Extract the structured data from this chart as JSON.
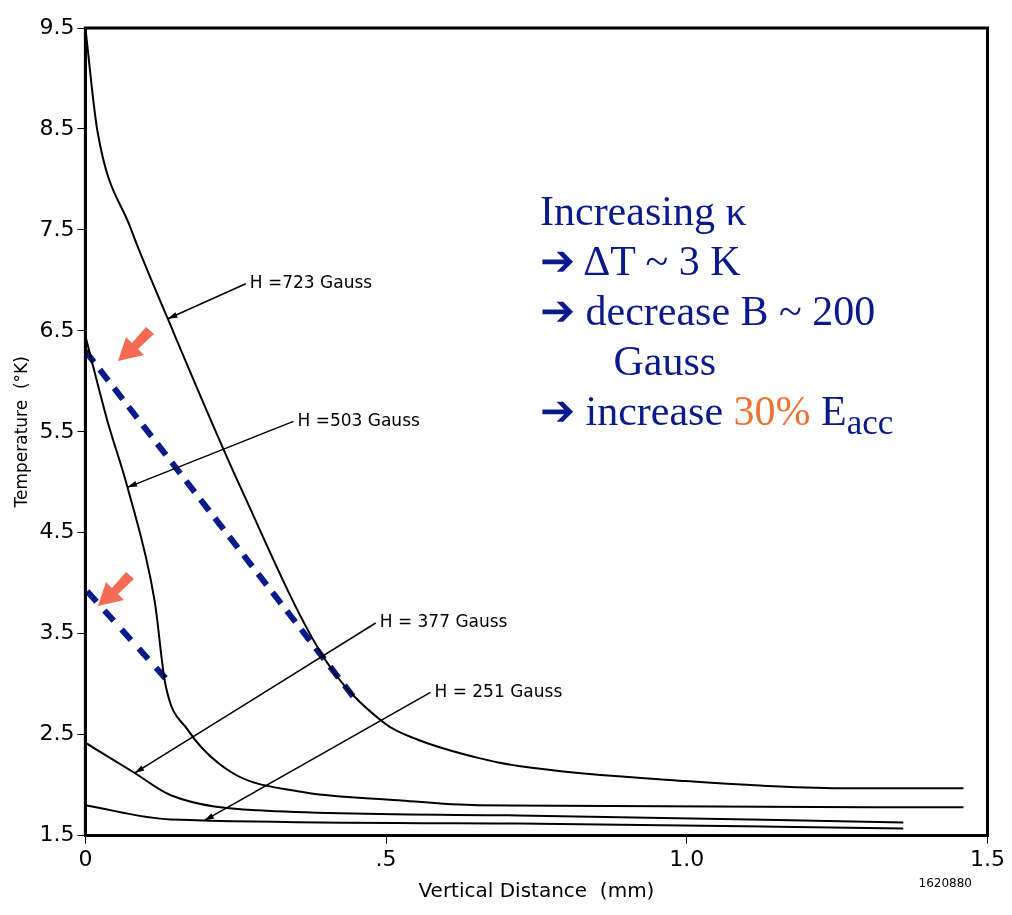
{
  "chart_data": {
    "type": "line",
    "xlabel": "Vertical Distance  (mm)",
    "ylabel": "Temperature  (°K)",
    "xlim": [
      0,
      1.5
    ],
    "xticks": [
      {
        "value": 0,
        "label": "0"
      },
      {
        "value": 0.5,
        "label": ".5"
      },
      {
        "value": 1,
        "label": "1.0"
      },
      {
        "value": 1.5,
        "label": "1.5"
      }
    ],
    "ylim": [
      1.5,
      9.5
    ],
    "yticks": [
      1.5,
      2.5,
      3.5,
      4.5,
      5.5,
      6.5,
      7.5,
      8.5,
      9.5
    ],
    "grid": false,
    "legend": false,
    "marker": "none",
    "series": [
      {
        "color": "#000000",
        "x": [
          0,
          0.02,
          0.075,
          0.137,
          0.258,
          0.398,
          0.498,
          0.553,
          0.653,
          0.72,
          0.998,
          1.257,
          1.46
        ],
        "values": [
          9.5,
          8.48,
          7.52,
          6.62,
          4.95,
          3.25,
          2.61,
          2.45,
          2.27,
          2.19,
          2.04,
          1.97,
          1.97
        ]
      },
      {
        "color": "#000000",
        "x": [
          0,
          0.037,
          0.07,
          0.115,
          0.133,
          0.17,
          0.242,
          0.353,
          0.52,
          0.653,
          1.46
        ],
        "values": [
          6.45,
          5.6,
          4.95,
          3.83,
          3.0,
          2.55,
          2.13,
          1.94,
          1.85,
          1.8,
          1.78
        ]
      },
      {
        "color": "#000000",
        "x": [
          0,
          0.082,
          0.142,
          0.287,
          0.72,
          1.36
        ],
        "values": [
          2.42,
          2.12,
          1.9,
          1.75,
          1.7,
          1.63
        ]
      },
      {
        "color": "#000000",
        "x": [
          0,
          0.142,
          0.72,
          1.36
        ],
        "values": [
          1.8,
          1.66,
          1.62,
          1.57
        ]
      },
      {
        "color": "#0a1a8c",
        "line_style": "dashed",
        "x": [
          0,
          0.445
        ],
        "values": [
          6.3,
          2.88
        ]
      },
      {
        "color": "#0a1a8c",
        "line_style": "dashed",
        "x": [
          0.003,
          0.133
        ],
        "values": [
          3.92,
          3.06
        ]
      }
    ],
    "annotations": [
      {
        "text": "H =723 Gauss",
        "x": 0.137,
        "y": 6.62
      },
      {
        "text": "H =503 Gauss",
        "x": 0.07,
        "y": 4.95
      },
      {
        "text": "H = 377 Gauss",
        "x": 0.082,
        "y": 2.12
      },
      {
        "text": "H = 251 Gauss",
        "x": 0.198,
        "y": 1.65
      },
      "Increasing κ",
      "➔ ΔT ~ 3 K",
      "➔ decrease B ~ 200 Gauss",
      "➔ increase 30%  E$_{acc}$",
      "1620880"
    ]
  }
}
